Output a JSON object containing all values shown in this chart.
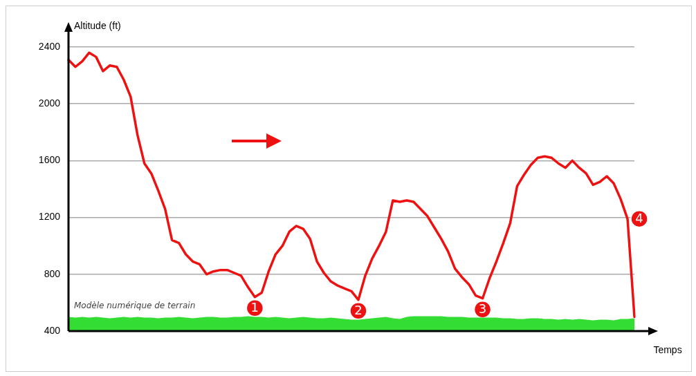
{
  "chart_data": {
    "type": "line",
    "xlabel": "Temps",
    "ylabel": "Altitude (ft)",
    "categories": [
      null,
      null,
      null,
      null,
      null,
      null,
      null,
      null,
      null,
      null,
      null,
      null,
      null,
      null,
      null,
      null,
      null,
      null,
      null,
      null,
      null,
      null,
      null,
      null,
      null,
      null,
      null,
      null,
      null,
      null,
      null,
      null,
      null,
      null,
      null,
      null,
      null,
      null,
      null,
      null,
      null,
      null,
      null,
      null,
      null,
      null,
      null,
      null,
      null,
      null,
      null,
      null,
      null,
      null,
      null,
      null,
      null,
      null,
      null,
      null,
      null,
      null,
      null,
      null,
      null,
      null,
      null,
      null,
      null,
      null,
      null,
      null,
      null,
      null,
      null,
      null,
      null,
      null,
      null,
      null,
      null,
      null,
      null
    ],
    "series": [
      {
        "type": "line",
        "color": "#ee1111",
        "values": [
          2310,
          2260,
          2300,
          2360,
          2330,
          2230,
          2270,
          2260,
          2170,
          2050,
          1780,
          1580,
          1510,
          1390,
          1260,
          1040,
          1020,
          940,
          890,
          870,
          800,
          820,
          830,
          830,
          810,
          790,
          710,
          640,
          670,
          820,
          940,
          1000,
          1100,
          1140,
          1120,
          1050,
          890,
          810,
          750,
          720,
          700,
          680,
          620,
          790,
          910,
          1000,
          1100,
          1320,
          1310,
          1320,
          1310,
          1260,
          1210,
          1130,
          1050,
          960,
          840,
          780,
          730,
          650,
          630,
          770,
          890,
          1020,
          1160,
          1420,
          1500,
          1570,
          1620,
          1630,
          1620,
          1580,
          1550,
          1600,
          1550,
          1510,
          1430,
          1450,
          1490,
          1440,
          1330,
          1190,
          500
        ]
      },
      {
        "type": "area",
        "name": "Modèle numérique de terrain",
        "color": "#33dd33",
        "values": [
          500,
          495,
          500,
          495,
          500,
          495,
          490,
          495,
          500,
          495,
          500,
          495,
          495,
          490,
          495,
          495,
          500,
          495,
          490,
          495,
          500,
          500,
          495,
          495,
          500,
          500,
          505,
          500,
          500,
          495,
          500,
          495,
          490,
          495,
          500,
          495,
          490,
          490,
          495,
          490,
          485,
          480,
          480,
          485,
          490,
          495,
          500,
          490,
          485,
          500,
          505,
          505,
          505,
          505,
          505,
          500,
          500,
          500,
          495,
          495,
          495,
          495,
          495,
          490,
          490,
          485,
          485,
          490,
          490,
          485,
          485,
          480,
          485,
          480,
          485,
          480,
          475,
          480,
          480,
          475,
          485,
          485,
          490
        ]
      }
    ],
    "ylim": [
      400,
      2400
    ],
    "yticks": [
      400,
      800,
      1200,
      1600,
      2000,
      2400
    ],
    "grid": "y",
    "tick_labels": "y",
    "marker": "none",
    "annotations": [
      {
        "text": "1",
        "y": 640
      },
      {
        "text": "2",
        "y": 620
      },
      {
        "text": "3",
        "y": 630
      },
      {
        "text": "4",
        "y": 1190
      }
    ]
  }
}
